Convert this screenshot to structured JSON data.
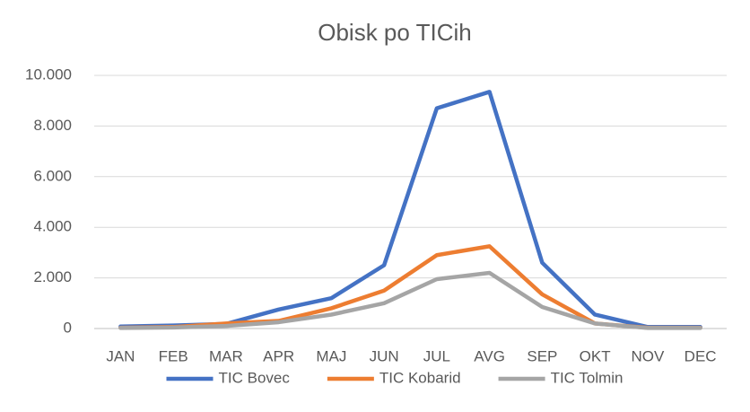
{
  "chart_data": {
    "type": "line",
    "title": "Obisk po TICih",
    "categories": [
      "JAN",
      "FEB",
      "MAR",
      "APR",
      "MAJ",
      "JUN",
      "JUL",
      "AVG",
      "SEP",
      "OKT",
      "NOV",
      "DEC"
    ],
    "series": [
      {
        "name": "TIC Bovec",
        "color": "#4472c4",
        "values": [
          80,
          120,
          180,
          750,
          1200,
          2500,
          8700,
          9350,
          2600,
          550,
          60,
          60
        ]
      },
      {
        "name": "TIC Kobarid",
        "color": "#ed7d31",
        "values": [
          30,
          60,
          200,
          300,
          800,
          1500,
          2900,
          3250,
          1350,
          200,
          30,
          30
        ]
      },
      {
        "name": "TIC Tolmin",
        "color": "#a5a5a5",
        "values": [
          20,
          40,
          100,
          250,
          550,
          1000,
          1950,
          2200,
          850,
          200,
          20,
          20
        ]
      }
    ],
    "ylim": [
      0,
      10000
    ],
    "yticks": [
      0,
      {
        "value": 2000,
        "label": "2.000"
      },
      {
        "value": 4000,
        "label": "4.000"
      },
      {
        "value": 6000,
        "label": "6.000"
      },
      {
        "value": 8000,
        "label": "8.000"
      },
      {
        "value": 10000,
        "label": "10.000"
      }
    ],
    "grid": true,
    "legend": "bottom"
  }
}
